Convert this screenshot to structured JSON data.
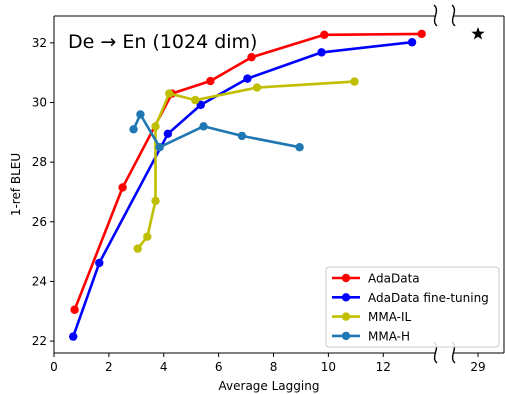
{
  "chart_data": {
    "type": "line",
    "title": "De → En (1024 dim)",
    "xlabel": "Average Lagging",
    "ylabel": "1-ref BLEU",
    "xlim": [
      0,
      16.4
    ],
    "ylim": [
      21.6,
      32.9
    ],
    "x_ticks": [
      "0",
      "2",
      "4",
      "6",
      "8",
      "10",
      "12",
      "29"
    ],
    "y_ticks": [
      "22",
      "24",
      "26",
      "28",
      "30",
      "32"
    ],
    "axis_break": "x between 14 and 29",
    "legend_position": "lower right",
    "grid": false,
    "series": [
      {
        "name": "AdaData",
        "color": "#ff0000",
        "x": [
          0.75,
          2.5,
          4.3,
          5.7,
          7.2,
          9.85,
          13.4
        ],
        "y": [
          23.05,
          27.15,
          30.3,
          30.72,
          31.52,
          32.27,
          32.3
        ]
      },
      {
        "name": "AdaData fine-tuning",
        "color": "#0000ff",
        "x": [
          0.7,
          1.65,
          4.15,
          5.35,
          7.05,
          9.75,
          13.05
        ],
        "y": [
          22.15,
          24.62,
          28.95,
          29.92,
          30.8,
          31.68,
          32.02
        ]
      },
      {
        "name": "MMA-IL",
        "color": "#bfbf00",
        "x": [
          3.05,
          3.4,
          3.7,
          3.7,
          4.2,
          5.15,
          7.4,
          10.95
        ],
        "y": [
          25.1,
          25.5,
          26.7,
          29.2,
          30.3,
          30.08,
          30.5,
          30.7
        ]
      },
      {
        "name": "MMA-H",
        "color": "#1f77b4",
        "x": [
          2.9,
          3.15,
          3.85,
          5.45,
          6.85,
          8.95
        ],
        "y": [
          29.1,
          29.6,
          28.5,
          29.2,
          28.88,
          28.5
        ]
      }
    ],
    "extra_points": [
      {
        "marker": "star",
        "x_label": "29",
        "y": 32.3,
        "color": "#000000"
      }
    ]
  }
}
